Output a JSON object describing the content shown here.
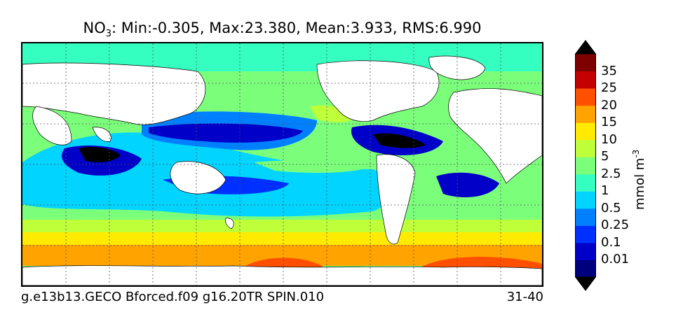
{
  "title": {
    "prefix": "NO",
    "subscript": "3",
    "rest": ": Min:-0.305, Max:23.380, Mean:3.933, RMS:6.990"
  },
  "footer": {
    "left": "g.e13b13.GECO Bforced.f09 g16.20TR SPIN.010",
    "right": "31-40"
  },
  "colorbar": {
    "unit": "mmol m",
    "unit_exponent": "-3",
    "levels": [
      "0.01",
      "0.1",
      "0.25",
      "0.5",
      "1",
      "2.5",
      "5",
      "10",
      "15",
      "20",
      "25",
      "35"
    ],
    "colors": [
      "#00007f",
      "#0000c8",
      "#0030ff",
      "#0080ff",
      "#00d4ff",
      "#35ffc0",
      "#7bff7b",
      "#bfff3a",
      "#ffea00",
      "#ffa300",
      "#ff5000",
      "#c40000",
      "#7f0000"
    ],
    "extend_low_color": "#000000",
    "extend_high_color": "#000000"
  }
}
